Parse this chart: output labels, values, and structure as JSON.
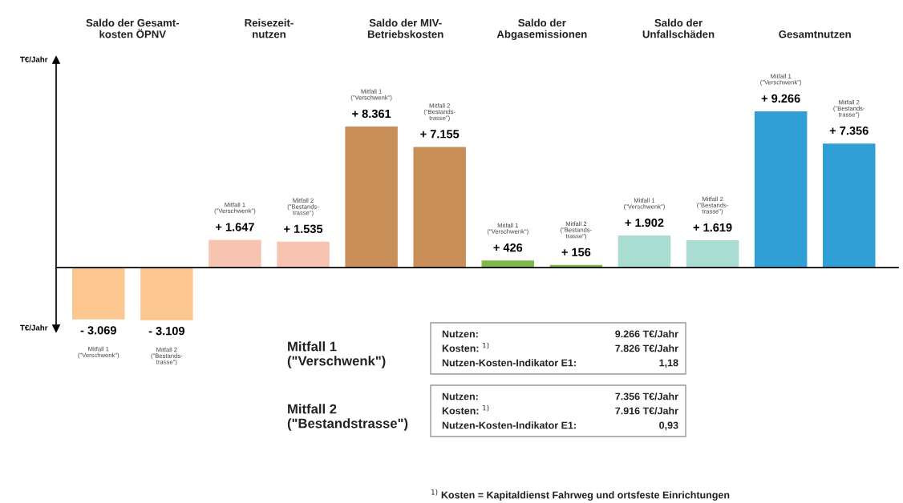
{
  "chart_data": {
    "type": "bar",
    "ylabel": "T€/Jahr",
    "categories": [
      "Mitfall 1\n(\"Verschwenk\")",
      "Mitfall 2\n(\"Bestands-\ntrasse\")",
      "Mitfall 1\n(\"Verschwenk\")",
      "Mitfall 2\n(\"Bestands-\ntrasse\")",
      "Mitfall 1\n(\"Verschwenk\")",
      "Mitfall 2\n(\"Bestands-\ntrasse\")",
      "Mitfall 1\n(\"Verschwenk\")",
      "Mitfall 2\n(\"Bestands-\ntrasse\")",
      "Mitfall 1\n(\"Verschwenk\")",
      "Mitfall 2\n(\"Bestands-\ntrasse\")",
      "Mitfall 1\n(\"Verschwenk\")",
      "Mitfall 2\n(\"Bestands-\ntrasse\")"
    ],
    "values": [
      -3069,
      -3109,
      1647,
      1535,
      8361,
      7155,
      426,
      156,
      1902,
      1619,
      9266,
      7356
    ],
    "value_labels": [
      "- 3.069",
      "- 3.109",
      "+ 1.647",
      "+ 1.535",
      "+ 8.361",
      "+ 7.155",
      "+ 426",
      "+ 156",
      "+ 1.902",
      "+ 1.619",
      "+ 9.266",
      "+ 7.356"
    ],
    "colors": [
      "#fbc690",
      "#fbc690",
      "#f8c4b2",
      "#f8c4b2",
      "#c98f58",
      "#c98f58",
      "#7cb84a",
      "#7cb84a",
      "#a9ddd2",
      "#a9ddd2",
      "#2f9fd5",
      "#2f9fd5"
    ],
    "ylim": [
      -3600,
      12300
    ],
    "legend": false,
    "annotations": [
      "Saldo der Gesamt-\nkosten ÖPNV",
      "Reisezeit-\nnutzen",
      "Saldo der MIV-\nBetriebskosten",
      "Saldo der\nAbgasemissionen",
      "Saldo der\nUnfallschäden",
      "Gesamtnutzen",
      "Mitfall 1\n(\"Verschwenk\")",
      "Nutzen:",
      "9.266 T€/Jahr",
      "Kosten: $^{1)}$",
      "7.826 T€/Jahr",
      "Nutzen-Kosten-Indikator E1:",
      "1,18",
      "Mitfall 2\n(\"Bestandstrasse\")",
      "Nutzen:",
      "7.356 T€/Jahr",
      "Kosten: $^{1)}$",
      "7.916 T€/Jahr",
      "Nutzen-Kosten-Indikator E1:",
      "0,93",
      "$^{1)}$ Kosten = Kapitaldienst Fahrweg und ortsfeste Einrichtungen"
    ]
  }
}
